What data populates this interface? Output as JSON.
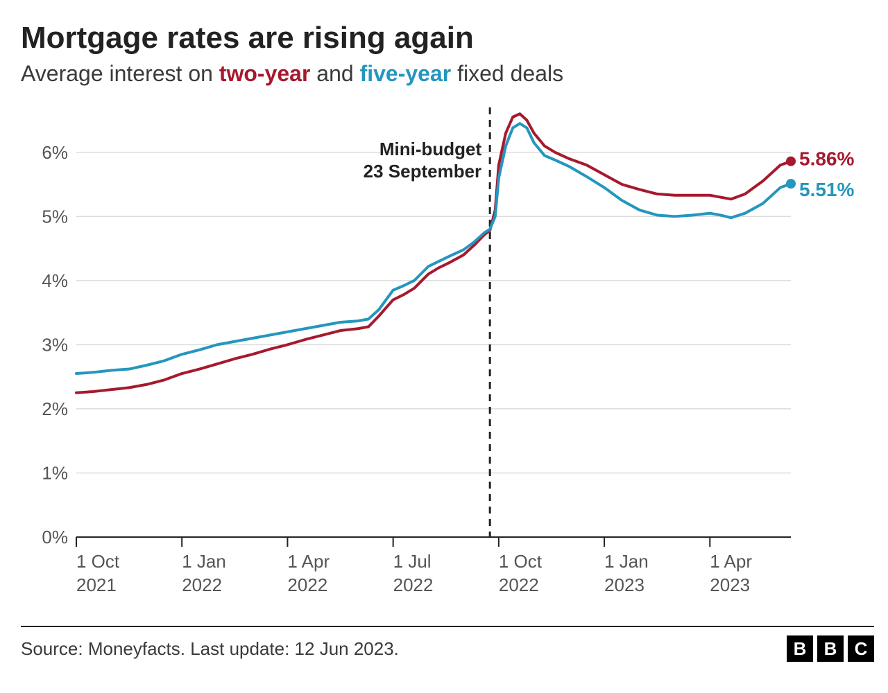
{
  "title": "Mortgage rates are rising again",
  "subtitle_parts": {
    "prefix": "Average interest on ",
    "series1": "two-year",
    "mid": " and ",
    "series2": "five-year",
    "suffix": " fixed deals"
  },
  "footer_source": "Source: Moneyfacts. Last update: 12 Jun 2023.",
  "logo_letters": [
    "B",
    "B",
    "C"
  ],
  "chart": {
    "type": "line",
    "background_color": "#ffffff",
    "grid_color": "#dcdcdc",
    "axis_color": "#222222",
    "tick_font_color": "#555555",
    "tick_fontsize": 26,
    "xlim": [
      0,
      20.3
    ],
    "ylim": [
      0,
      6.7
    ],
    "y_ticks": [
      {
        "v": 0,
        "label": "0%"
      },
      {
        "v": 1,
        "label": "1%"
      },
      {
        "v": 2,
        "label": "2%"
      },
      {
        "v": 3,
        "label": "3%"
      },
      {
        "v": 4,
        "label": "4%"
      },
      {
        "v": 5,
        "label": "5%"
      },
      {
        "v": 6,
        "label": "6%"
      }
    ],
    "x_ticks": [
      {
        "v": 0,
        "line1": "1 Oct",
        "line2": "2021"
      },
      {
        "v": 3,
        "line1": "1 Jan",
        "line2": "2022"
      },
      {
        "v": 6,
        "line1": "1 Apr",
        "line2": "2022"
      },
      {
        "v": 9,
        "line1": "1 Jul",
        "line2": "2022"
      },
      {
        "v": 12,
        "line1": "1 Oct",
        "line2": "2022"
      },
      {
        "v": 15,
        "line1": "1 Jan",
        "line2": "2023"
      },
      {
        "v": 18,
        "line1": "1 Apr",
        "line2": "2023"
      }
    ],
    "annotation": {
      "x": 11.75,
      "line1": "Mini-budget",
      "line2": "23 September",
      "fontsize": 26,
      "font_weight": 700,
      "text_color": "#222222",
      "dash_color": "#222222",
      "dash_width": 3,
      "dash_pattern": "10,8"
    },
    "series": [
      {
        "name": "two-year",
        "color": "#a6192e",
        "line_width": 4,
        "end_label": "5.86%",
        "end_label_fontsize": 28,
        "end_marker_radius": 7,
        "points": [
          [
            0,
            2.25
          ],
          [
            0.5,
            2.27
          ],
          [
            1,
            2.3
          ],
          [
            1.5,
            2.33
          ],
          [
            2,
            2.38
          ],
          [
            2.5,
            2.45
          ],
          [
            3,
            2.55
          ],
          [
            3.5,
            2.62
          ],
          [
            4,
            2.7
          ],
          [
            4.5,
            2.78
          ],
          [
            5,
            2.85
          ],
          [
            5.5,
            2.93
          ],
          [
            6,
            3.0
          ],
          [
            6.5,
            3.08
          ],
          [
            7,
            3.15
          ],
          [
            7.5,
            3.22
          ],
          [
            8,
            3.25
          ],
          [
            8.3,
            3.28
          ],
          [
            8.6,
            3.45
          ],
          [
            9,
            3.7
          ],
          [
            9.3,
            3.78
          ],
          [
            9.6,
            3.88
          ],
          [
            10,
            4.1
          ],
          [
            10.3,
            4.2
          ],
          [
            10.6,
            4.28
          ],
          [
            11,
            4.4
          ],
          [
            11.3,
            4.55
          ],
          [
            11.6,
            4.72
          ],
          [
            11.75,
            4.78
          ],
          [
            11.9,
            5.1
          ],
          [
            12.0,
            5.8
          ],
          [
            12.2,
            6.3
          ],
          [
            12.4,
            6.55
          ],
          [
            12.6,
            6.6
          ],
          [
            12.8,
            6.5
          ],
          [
            13.0,
            6.3
          ],
          [
            13.3,
            6.1
          ],
          [
            13.6,
            6.0
          ],
          [
            14,
            5.9
          ],
          [
            14.5,
            5.8
          ],
          [
            15,
            5.65
          ],
          [
            15.5,
            5.5
          ],
          [
            16,
            5.42
          ],
          [
            16.5,
            5.35
          ],
          [
            17,
            5.33
          ],
          [
            17.5,
            5.33
          ],
          [
            18,
            5.33
          ],
          [
            18.3,
            5.3
          ],
          [
            18.6,
            5.27
          ],
          [
            19,
            5.35
          ],
          [
            19.5,
            5.55
          ],
          [
            20,
            5.8
          ],
          [
            20.3,
            5.86
          ]
        ]
      },
      {
        "name": "five-year",
        "color": "#2596be",
        "line_width": 4,
        "end_label": "5.51%",
        "end_label_fontsize": 28,
        "end_marker_radius": 7,
        "points": [
          [
            0,
            2.55
          ],
          [
            0.5,
            2.57
          ],
          [
            1,
            2.6
          ],
          [
            1.5,
            2.62
          ],
          [
            2,
            2.68
          ],
          [
            2.5,
            2.75
          ],
          [
            3,
            2.85
          ],
          [
            3.5,
            2.92
          ],
          [
            4,
            3.0
          ],
          [
            4.5,
            3.05
          ],
          [
            5,
            3.1
          ],
          [
            5.5,
            3.15
          ],
          [
            6,
            3.2
          ],
          [
            6.5,
            3.25
          ],
          [
            7,
            3.3
          ],
          [
            7.5,
            3.35
          ],
          [
            8,
            3.37
          ],
          [
            8.3,
            3.4
          ],
          [
            8.6,
            3.55
          ],
          [
            9,
            3.85
          ],
          [
            9.3,
            3.92
          ],
          [
            9.6,
            4.0
          ],
          [
            10,
            4.22
          ],
          [
            10.3,
            4.3
          ],
          [
            10.6,
            4.38
          ],
          [
            11,
            4.48
          ],
          [
            11.3,
            4.6
          ],
          [
            11.6,
            4.75
          ],
          [
            11.75,
            4.8
          ],
          [
            11.9,
            5.0
          ],
          [
            12.0,
            5.6
          ],
          [
            12.2,
            6.1
          ],
          [
            12.4,
            6.38
          ],
          [
            12.6,
            6.45
          ],
          [
            12.8,
            6.38
          ],
          [
            13.0,
            6.15
          ],
          [
            13.3,
            5.95
          ],
          [
            13.6,
            5.88
          ],
          [
            14,
            5.78
          ],
          [
            14.5,
            5.62
          ],
          [
            15,
            5.45
          ],
          [
            15.5,
            5.25
          ],
          [
            16,
            5.1
          ],
          [
            16.5,
            5.02
          ],
          [
            17,
            5.0
          ],
          [
            17.5,
            5.02
          ],
          [
            18,
            5.05
          ],
          [
            18.3,
            5.02
          ],
          [
            18.6,
            4.98
          ],
          [
            19,
            5.05
          ],
          [
            19.5,
            5.2
          ],
          [
            20,
            5.45
          ],
          [
            20.3,
            5.51
          ]
        ]
      }
    ]
  }
}
